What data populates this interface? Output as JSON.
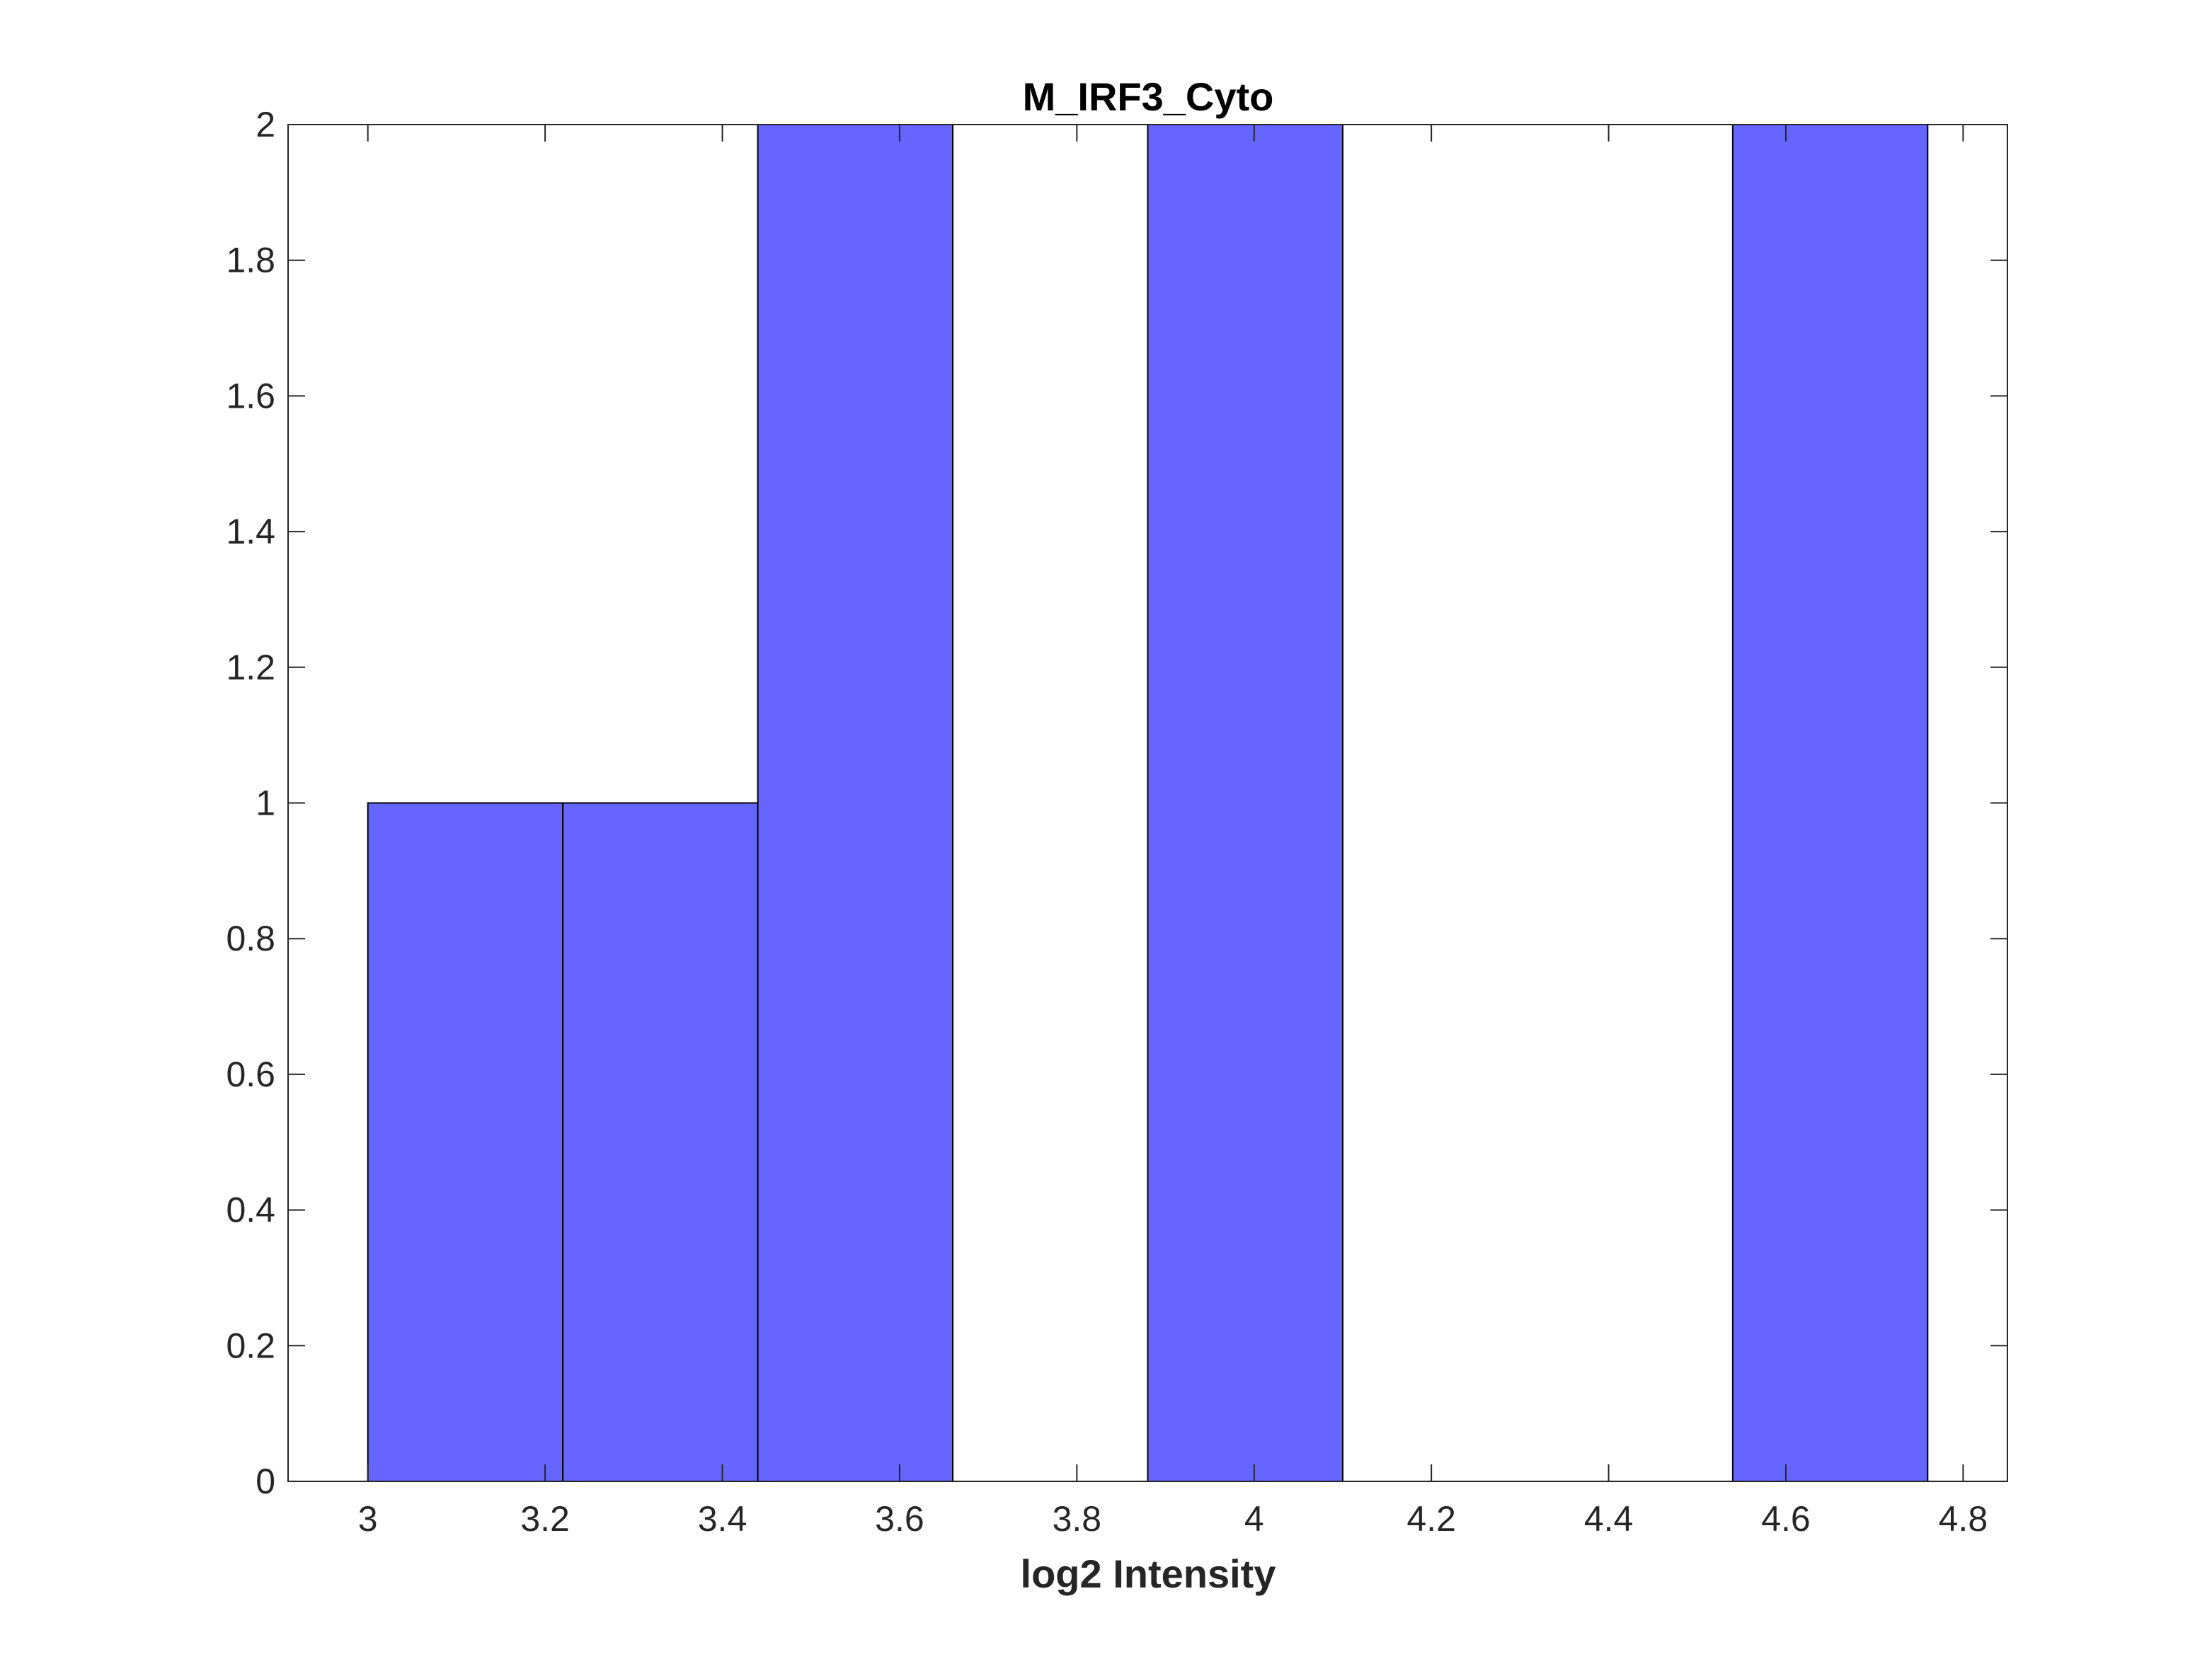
{
  "chart_data": {
    "type": "bar",
    "subtype": "histogram",
    "title": "M_IRF3_Cyto",
    "xlabel": "log2 Intensity",
    "ylabel": "",
    "xlim": [
      2.91,
      4.85
    ],
    "ylim": [
      0,
      2
    ],
    "xticks": [
      3,
      3.2,
      3.4,
      3.6,
      3.8,
      4,
      4.2,
      4.4,
      4.6,
      4.8
    ],
    "xtick_labels": [
      "3",
      "3.2",
      "3.4",
      "3.6",
      "3.8",
      "4",
      "4.2",
      "4.4",
      "4.6",
      "4.8"
    ],
    "yticks": [
      0,
      0.2,
      0.4,
      0.6,
      0.8,
      1,
      1.2,
      1.4,
      1.6,
      1.8,
      2
    ],
    "ytick_labels": [
      "0",
      "0.2",
      "0.4",
      "0.6",
      "0.8",
      "1",
      "1.2",
      "1.4",
      "1.6",
      "1.8",
      "2"
    ],
    "bins": [
      {
        "start": 3.0,
        "end": 3.22,
        "count": 1
      },
      {
        "start": 3.22,
        "end": 3.44,
        "count": 1
      },
      {
        "start": 3.44,
        "end": 3.66,
        "count": 2
      },
      {
        "start": 3.66,
        "end": 3.88,
        "count": 0
      },
      {
        "start": 3.88,
        "end": 4.1,
        "count": 2
      },
      {
        "start": 4.1,
        "end": 4.32,
        "count": 0
      },
      {
        "start": 4.32,
        "end": 4.54,
        "count": 0
      },
      {
        "start": 4.54,
        "end": 4.76,
        "count": 2
      }
    ],
    "bar_color": "#6666ff",
    "edge_color": "#000000",
    "grid": false,
    "legend": "none"
  }
}
